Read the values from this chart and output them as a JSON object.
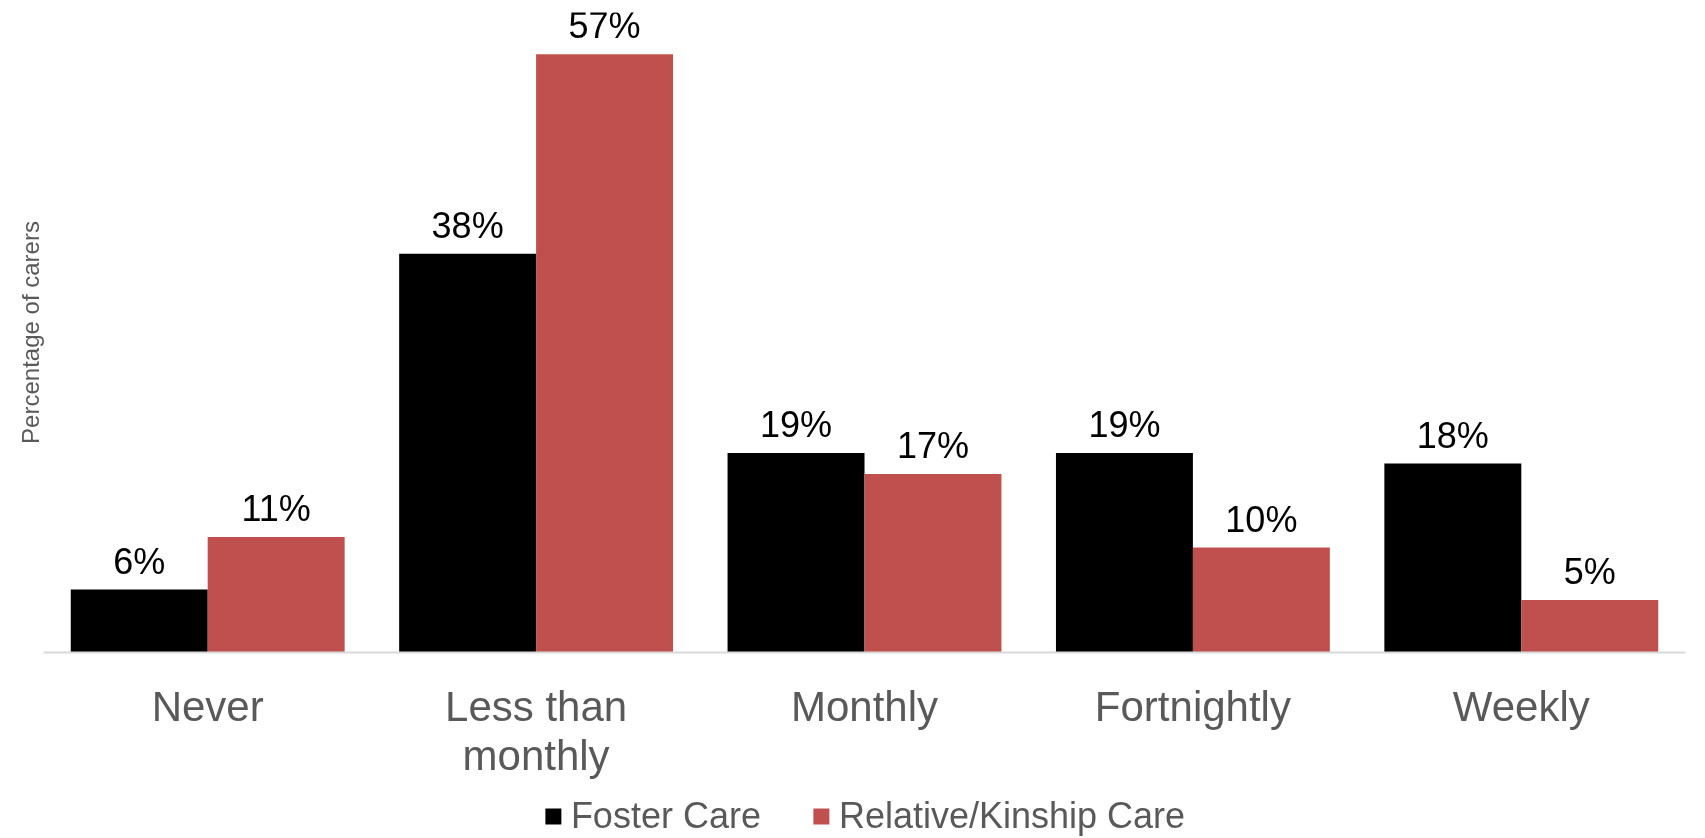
{
  "chart_data": {
    "type": "bar",
    "ylabel": "Percentage of carers",
    "categories": [
      "Never",
      "Less than monthly",
      "Monthly",
      "Fortnightly",
      "Weekly"
    ],
    "series": [
      {
        "name": "Foster Care",
        "color": "#000000",
        "values": [
          6,
          38,
          19,
          19,
          18
        ],
        "value_labels": [
          "6%",
          "38%",
          "19%",
          "19%",
          "18%"
        ]
      },
      {
        "name": "Relative/Kinship Care",
        "color": "#c0504d",
        "values": [
          11,
          57,
          17,
          10,
          5
        ],
        "value_labels": [
          "11%",
          "57%",
          "17%",
          "10%",
          "5%"
        ]
      }
    ],
    "tick_labels": "x",
    "legend": "bottom"
  }
}
